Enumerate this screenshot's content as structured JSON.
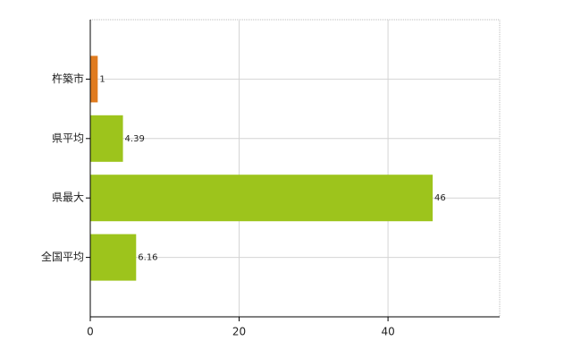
{
  "chart_data": {
    "type": "barh",
    "categories": [
      "杵築市",
      "県平均",
      "県最大",
      "全国平均"
    ],
    "values": [
      1,
      4.39,
      46,
      6.16
    ],
    "colors": [
      "#e07b1f",
      "#9dc41c",
      "#9dc41c",
      "#9dc41c"
    ],
    "xlim": [
      0,
      55
    ],
    "xticks": [
      0,
      20,
      40
    ],
    "grid": true
  }
}
